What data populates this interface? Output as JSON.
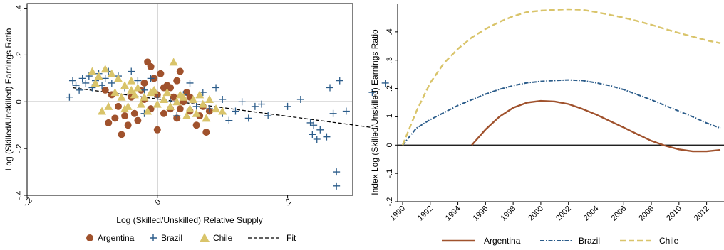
{
  "colors": {
    "argentina": "#a0522d",
    "brazil": "#2b5c8a",
    "chile": "#d9c46a",
    "fit": "#000000",
    "frame": "#000000",
    "refline": "#7f7f7f"
  },
  "chart_data": [
    {
      "type": "scatter",
      "title": "",
      "xlabel": "Log (Skilled/Unskilled) Relative Supply",
      "ylabel": "Log (Skilled/Unskilled) Earnings Ratio",
      "xlim": [
        -0.2,
        0.3
      ],
      "ylim": [
        -0.4,
        0.42
      ],
      "xticks": [
        -0.2,
        0,
        0.2
      ],
      "xtick_labels": [
        "-.2",
        "0",
        ".2"
      ],
      "yticks": [
        -0.4,
        -0.2,
        0,
        0.2,
        0.4
      ],
      "ytick_labels": [
        "-.4",
        "-.2",
        "0",
        ".2",
        ".4"
      ],
      "reference_lines": {
        "x": 0,
        "y": 0
      },
      "legend": {
        "position": "bottom",
        "labels": [
          "Argentina",
          "Brazil",
          "Chile",
          "Fit"
        ]
      },
      "series": [
        {
          "name": "Argentina",
          "marker": "circle",
          "points": [
            [
              -0.08,
              0.05
            ],
            [
              -0.07,
              0.03
            ],
            [
              -0.06,
              -0.02
            ],
            [
              -0.05,
              -0.06
            ],
            [
              -0.04,
              0.02
            ],
            [
              -0.03,
              -0.08
            ],
            [
              -0.02,
              0.08
            ],
            [
              -0.01,
              0.15
            ],
            [
              0.0,
              0.03
            ],
            [
              0.01,
              0.06
            ],
            [
              0.02,
              -0.03
            ],
            [
              0.03,
              -0.07
            ],
            [
              0.04,
              0.0
            ],
            [
              0.05,
              -0.04
            ],
            [
              0.06,
              -0.1
            ],
            [
              0.07,
              -0.02
            ],
            [
              -0.015,
              0.17
            ],
            [
              -0.005,
              0.1
            ],
            [
              0.005,
              0.12
            ],
            [
              0.015,
              0.07
            ],
            [
              0.025,
              0.02
            ],
            [
              0.035,
              -0.03
            ],
            [
              -0.025,
              0.05
            ],
            [
              -0.035,
              -0.05
            ],
            [
              -0.045,
              -0.1
            ],
            [
              -0.055,
              -0.14
            ],
            [
              -0.065,
              -0.07
            ],
            [
              -0.075,
              -0.09
            ],
            [
              0.0,
              -0.12
            ],
            [
              0.01,
              -0.05
            ],
            [
              0.02,
              0.06
            ],
            [
              0.045,
              0.04
            ],
            [
              0.08,
              -0.04
            ],
            [
              0.03,
              0.09
            ],
            [
              -0.01,
              -0.03
            ],
            [
              -0.02,
              0.01
            ],
            [
              0.05,
              0.02
            ],
            [
              0.065,
              -0.06
            ],
            [
              0.075,
              -0.13
            ],
            [
              0.035,
              0.13
            ]
          ]
        },
        {
          "name": "Brazil",
          "marker": "plus",
          "points": [
            [
              -0.13,
              0.09
            ],
            [
              -0.125,
              0.07
            ],
            [
              -0.12,
              0.05
            ],
            [
              -0.115,
              0.1
            ],
            [
              -0.11,
              0.08
            ],
            [
              -0.105,
              0.11
            ],
            [
              -0.1,
              0.06
            ],
            [
              -0.095,
              0.09
            ],
            [
              -0.09,
              0.12
            ],
            [
              -0.085,
              0.07
            ],
            [
              -0.08,
              0.1
            ],
            [
              -0.075,
              0.13
            ],
            [
              -0.07,
              0.08
            ],
            [
              -0.06,
              0.11
            ],
            [
              -0.05,
              0.06
            ],
            [
              -0.04,
              0.13
            ],
            [
              -0.03,
              0.09
            ],
            [
              -0.02,
              0.05
            ],
            [
              -0.01,
              0.1
            ],
            [
              0.0,
              0.02
            ],
            [
              0.02,
              0.0
            ],
            [
              0.04,
              0.03
            ],
            [
              0.06,
              -0.02
            ],
            [
              0.08,
              -0.03
            ],
            [
              0.1,
              -0.05
            ],
            [
              0.12,
              -0.04
            ],
            [
              0.14,
              -0.07
            ],
            [
              0.15,
              -0.02
            ],
            [
              0.16,
              -0.01
            ],
            [
              0.17,
              -0.06
            ],
            [
              0.11,
              -0.08
            ],
            [
              0.1,
              0.01
            ],
            [
              0.13,
              0.0
            ],
            [
              0.09,
              0.06
            ],
            [
              0.07,
              0.04
            ],
            [
              0.22,
              0.01
            ],
            [
              0.235,
              -0.09
            ],
            [
              0.238,
              -0.14
            ],
            [
              0.24,
              -0.1
            ],
            [
              0.245,
              -0.16
            ],
            [
              0.25,
              -0.12
            ],
            [
              0.26,
              -0.15
            ],
            [
              0.265,
              0.06
            ],
            [
              0.27,
              -0.05
            ],
            [
              0.28,
              0.09
            ],
            [
              0.29,
              -0.04
            ],
            [
              0.33,
              0.04
            ],
            [
              0.35,
              0.08
            ],
            [
              0.275,
              -0.3
            ],
            [
              0.275,
              -0.36
            ],
            [
              0.2,
              -0.02
            ],
            [
              0.05,
              0.08
            ],
            [
              -0.02,
              -0.05
            ],
            [
              0.03,
              -0.06
            ],
            [
              -0.135,
              0.02
            ]
          ]
        },
        {
          "name": "Chile",
          "marker": "triangle",
          "points": [
            [
              -0.1,
              0.13
            ],
            [
              -0.09,
              0.11
            ],
            [
              -0.08,
              0.14
            ],
            [
              -0.07,
              0.12
            ],
            [
              -0.06,
              0.1
            ],
            [
              -0.05,
              0.07
            ],
            [
              -0.04,
              0.09
            ],
            [
              -0.03,
              0.06
            ],
            [
              -0.02,
              0.02
            ],
            [
              -0.01,
              0.04
            ],
            [
              0.0,
              -0.01
            ],
            [
              0.01,
              0.01
            ],
            [
              0.02,
              -0.02
            ],
            [
              0.03,
              0.0
            ],
            [
              0.04,
              0.02
            ],
            [
              0.05,
              -0.03
            ],
            [
              0.06,
              -0.05
            ],
            [
              0.07,
              -0.01
            ],
            [
              0.08,
              0.01
            ],
            [
              0.09,
              -0.03
            ],
            [
              -0.085,
              -0.04
            ],
            [
              -0.075,
              -0.02
            ],
            [
              -0.065,
              0.04
            ],
            [
              -0.055,
              0.02
            ],
            [
              -0.045,
              -0.02
            ],
            [
              -0.035,
              0.03
            ],
            [
              -0.025,
              -0.01
            ],
            [
              -0.015,
              -0.04
            ],
            [
              -0.005,
              0.05
            ],
            [
              0.025,
              0.17
            ],
            [
              0.015,
              0.04
            ],
            [
              0.035,
              0.03
            ],
            [
              0.045,
              -0.06
            ],
            [
              0.055,
              0.01
            ],
            [
              0.065,
              0.03
            ],
            [
              0.075,
              -0.07
            ],
            [
              -0.095,
              0.08
            ],
            [
              -0.05,
              -0.03
            ],
            [
              -0.04,
              0.05
            ],
            [
              0.1,
              -0.04
            ]
          ]
        }
      ],
      "fit": {
        "name": "Fit",
        "points": [
          [
            -0.13,
            0.06
          ],
          [
            0.33,
            -0.11
          ]
        ]
      }
    },
    {
      "type": "line",
      "title": "",
      "xlabel": "",
      "ylabel": "Index Log (Skilled/Unskilled) Earnings Ratio",
      "x": [
        1990,
        1991,
        1992,
        1993,
        1994,
        1995,
        1996,
        1997,
        1998,
        1999,
        2000,
        2001,
        2002,
        2003,
        2004,
        2005,
        2006,
        2007,
        2008,
        2009,
        2010,
        2011,
        2012,
        2013
      ],
      "xlim": [
        1990,
        2013
      ],
      "ylim": [
        -0.2,
        0.5
      ],
      "xticks": [
        1990,
        1992,
        1994,
        1996,
        1998,
        2000,
        2002,
        2004,
        2006,
        2008,
        2010,
        2012
      ],
      "xtick_labels": [
        "1990",
        "1992",
        "1994",
        "1996",
        "1998",
        "2000",
        "2002",
        "2004",
        "2006",
        "2008",
        "2010",
        "2012"
      ],
      "yticks": [
        -0.2,
        -0.1,
        0,
        0.1,
        0.2,
        0.3,
        0.4
      ],
      "ytick_labels": [
        "-.2",
        "-.1",
        "0",
        ".1",
        ".2",
        ".3",
        ".4"
      ],
      "reference_lines": {
        "y": 0
      },
      "legend": {
        "position": "bottom",
        "labels": [
          "Argentina",
          "Brazil",
          "Chile"
        ]
      },
      "series": [
        {
          "name": "Argentina",
          "line_style": "solid",
          "values": [
            null,
            null,
            null,
            null,
            null,
            0.0,
            0.055,
            0.1,
            0.132,
            0.15,
            0.156,
            0.154,
            0.145,
            0.128,
            0.108,
            0.085,
            0.062,
            0.038,
            0.015,
            -0.002,
            -0.015,
            -0.022,
            -0.022,
            -0.017
          ]
        },
        {
          "name": "Brazil",
          "line_style": "dash-dot",
          "values": [
            0.0,
            0.06,
            0.09,
            0.115,
            0.14,
            0.16,
            0.18,
            0.197,
            0.21,
            0.22,
            0.225,
            0.228,
            0.23,
            0.228,
            0.22,
            0.21,
            0.196,
            0.178,
            0.16,
            0.14,
            0.12,
            0.1,
            0.078,
            0.06
          ]
        },
        {
          "name": "Chile",
          "line_style": "dashed",
          "values": [
            0.0,
            0.12,
            0.22,
            0.29,
            0.34,
            0.38,
            0.41,
            0.435,
            0.455,
            0.47,
            0.475,
            0.478,
            0.48,
            0.478,
            0.47,
            0.46,
            0.45,
            0.438,
            0.425,
            0.41,
            0.396,
            0.383,
            0.37,
            0.36
          ]
        }
      ]
    }
  ]
}
